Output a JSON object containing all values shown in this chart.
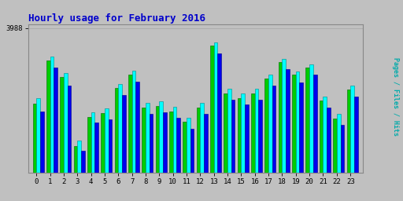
{
  "title": "Hourly usage for February 2016",
  "ylabel": "Pages / Files / Hits",
  "hours": [
    0,
    1,
    2,
    3,
    4,
    5,
    6,
    7,
    8,
    9,
    10,
    11,
    12,
    13,
    14,
    15,
    16,
    17,
    18,
    19,
    20,
    21,
    22,
    23
  ],
  "pages": [
    1900,
    3100,
    2650,
    750,
    1550,
    1650,
    2350,
    2700,
    1800,
    1850,
    1700,
    1400,
    1800,
    3500,
    2200,
    2050,
    2200,
    2600,
    3050,
    2700,
    2900,
    2000,
    1500,
    2300
  ],
  "files": [
    2050,
    3200,
    2750,
    900,
    1680,
    1780,
    2450,
    2820,
    1930,
    1980,
    1820,
    1520,
    1930,
    3600,
    2320,
    2180,
    2320,
    2700,
    3150,
    2800,
    3000,
    2100,
    1620,
    2400
  ],
  "hits": [
    1700,
    2900,
    2400,
    600,
    1380,
    1480,
    2150,
    2520,
    1630,
    1680,
    1520,
    1220,
    1630,
    3300,
    2020,
    1880,
    2020,
    2400,
    2850,
    2500,
    2700,
    1800,
    1320,
    2100
  ],
  "bar_width": 0.27,
  "pages_color": "#00cc00",
  "files_color": "#00ffff",
  "hits_color": "#0000ee",
  "bg_color": "#c0c0c0",
  "plot_bg": "#c0c0c0",
  "title_color": "#0000cc",
  "ylabel_color": "#00aaaa",
  "ylim": [
    0,
    4100
  ],
  "ytick_val": 3988,
  "ytick_label": "3988",
  "grid_color": "#aaaaaa",
  "border_color": "#888888",
  "figsize": [
    5.12,
    2.56
  ],
  "dpi": 100
}
